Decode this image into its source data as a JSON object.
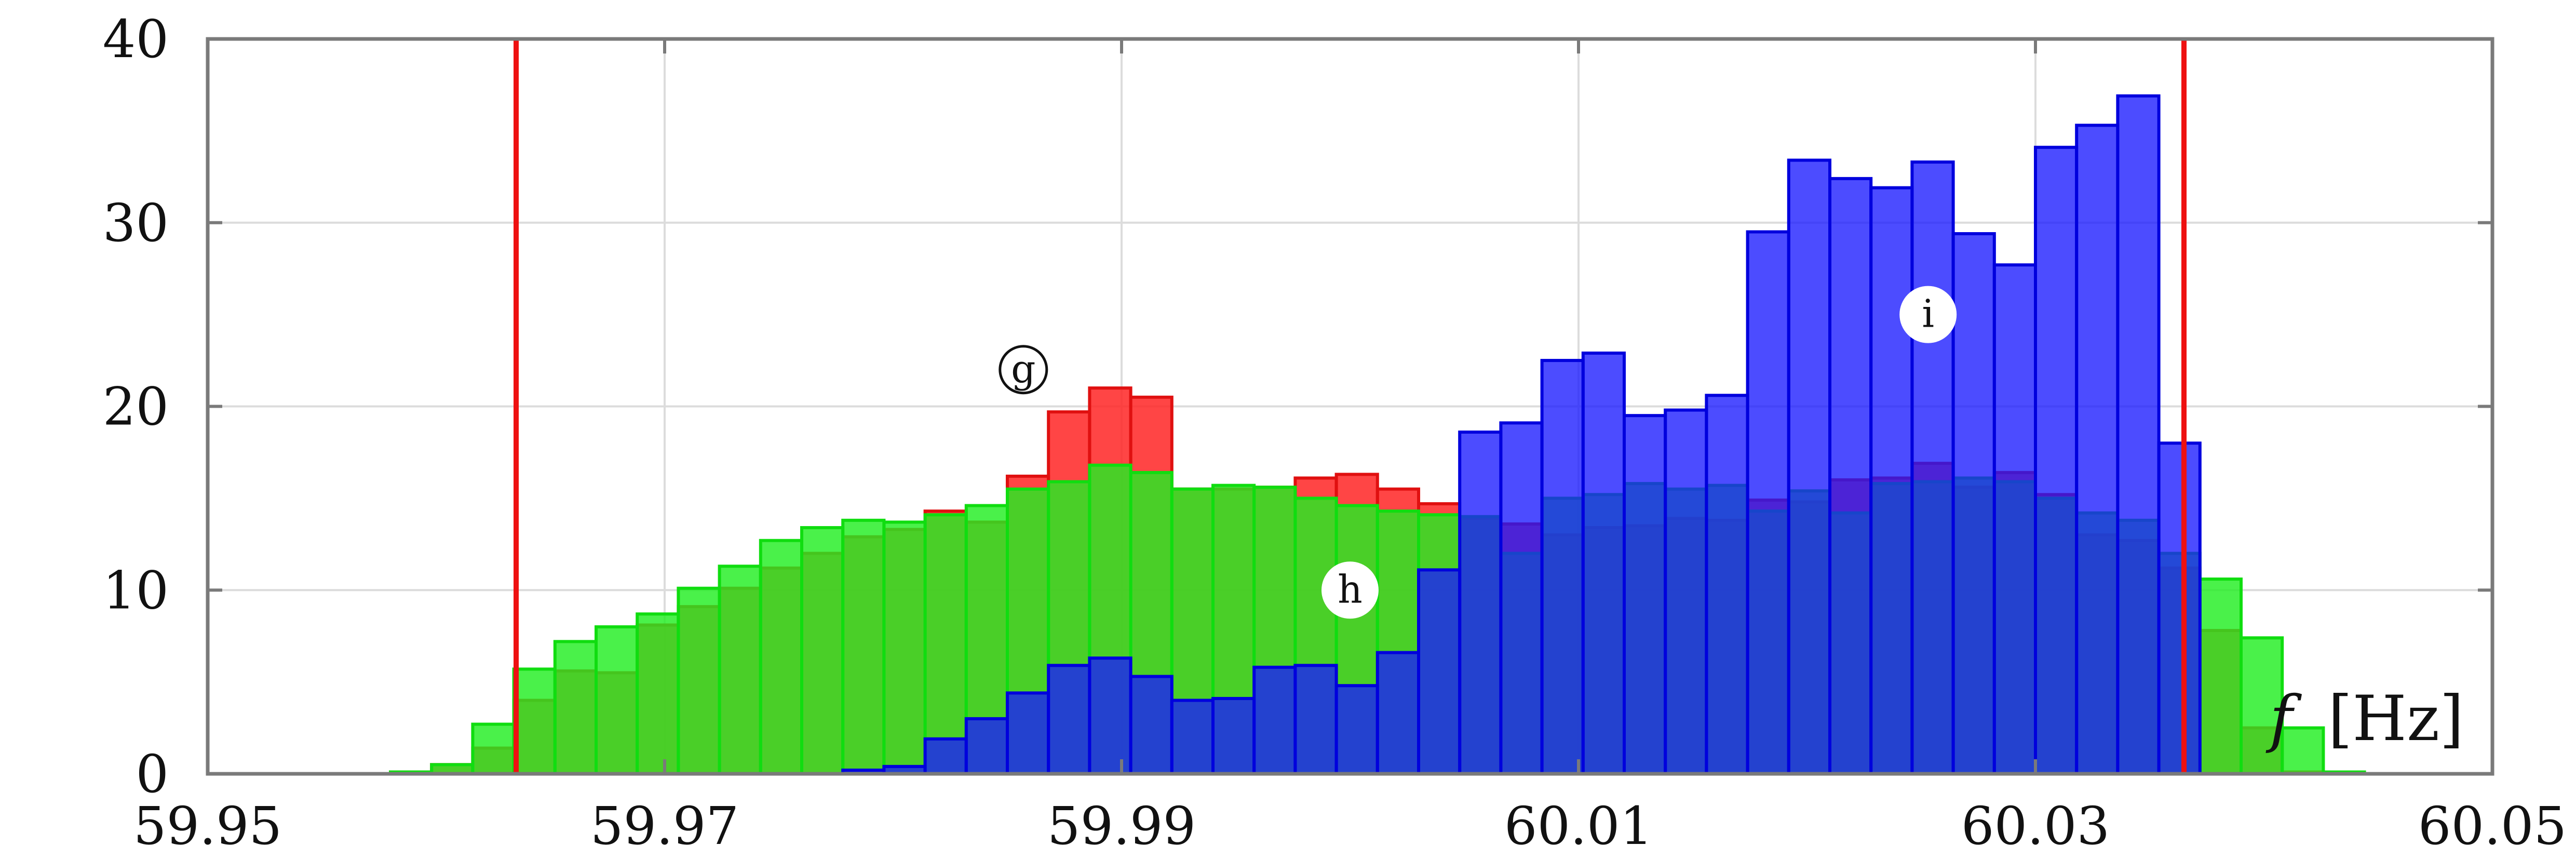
{
  "chart_data": {
    "type": "bar",
    "subtype": "overlaid-histogram",
    "xlabel_symbol": "f",
    "xlabel_unit": "[Hz]",
    "xlim": [
      59.95,
      60.05
    ],
    "ylim": [
      0,
      40
    ],
    "xticks": [
      "59.95",
      "59.97",
      "59.99",
      "60.01",
      "60.03",
      "60.05"
    ],
    "yticks": [
      "0",
      "10",
      "20",
      "30",
      "40"
    ],
    "grid": true,
    "bin_width": 0.0018,
    "bin_start": 59.958,
    "colors": {
      "red": "#ff2020",
      "green": "#22dd22",
      "blue": "#2a2aff",
      "limit": "#ee1111"
    },
    "series": [
      {
        "label": "g",
        "color": "#ff2020",
        "values": [
          0.1,
          0.5,
          1.4,
          4.0,
          5.6,
          5.5,
          8.1,
          9.1,
          10.1,
          11.2,
          12.0,
          12.9,
          13.3,
          14.3,
          13.7,
          16.2,
          19.7,
          21.0,
          20.5,
          15.5,
          15.5,
          15.6,
          16.1,
          16.3,
          15.5,
          14.7,
          13.9,
          13.6,
          13.0,
          13.4,
          13.5,
          13.9,
          13.8,
          14.9,
          14.8,
          16.0,
          16.1,
          16.9,
          15.6,
          16.4,
          15.2,
          13.0,
          12.7,
          11.2,
          7.8,
          2.5,
          0.1
        ]
      },
      {
        "label": "h",
        "color": "#22dd22",
        "values": [
          0.1,
          0.5,
          2.7,
          5.7,
          7.2,
          8.0,
          8.7,
          10.1,
          11.3,
          12.7,
          13.4,
          13.8,
          13.7,
          14.1,
          14.6,
          15.5,
          15.9,
          16.8,
          16.4,
          15.5,
          15.7,
          15.6,
          15.0,
          14.6,
          14.3,
          14.1,
          14.0,
          12.0,
          15.0,
          15.2,
          15.8,
          15.5,
          15.7,
          14.3,
          15.4,
          14.2,
          15.8,
          15.9,
          16.1,
          15.9,
          15.0,
          14.2,
          13.8,
          12.0,
          10.6,
          7.4,
          2.5,
          0.1
        ]
      },
      {
        "label": "i",
        "color": "#2a2aff",
        "values": [
          0,
          0,
          0,
          0,
          0,
          0,
          0,
          0,
          0,
          0,
          0,
          0.2,
          0.4,
          1.9,
          3.0,
          4.4,
          5.9,
          6.3,
          5.3,
          4.0,
          4.1,
          5.8,
          5.9,
          4.8,
          6.6,
          11.1,
          18.6,
          19.1,
          22.5,
          22.9,
          19.5,
          19.8,
          20.6,
          29.5,
          33.4,
          32.4,
          31.9,
          33.3,
          29.4,
          27.7,
          34.1,
          35.3,
          36.9,
          18.0,
          0,
          0
        ]
      }
    ],
    "vlines": [
      59.9635,
      60.0365
    ],
    "annotations": [
      {
        "text": "g",
        "x": 59.9857,
        "y": 22.0,
        "style": "circled"
      },
      {
        "text": "h",
        "x": 60.0,
        "y": 10.0,
        "style": "filled"
      },
      {
        "text": "i",
        "x": 60.0253,
        "y": 25.0,
        "style": "filled"
      }
    ]
  }
}
